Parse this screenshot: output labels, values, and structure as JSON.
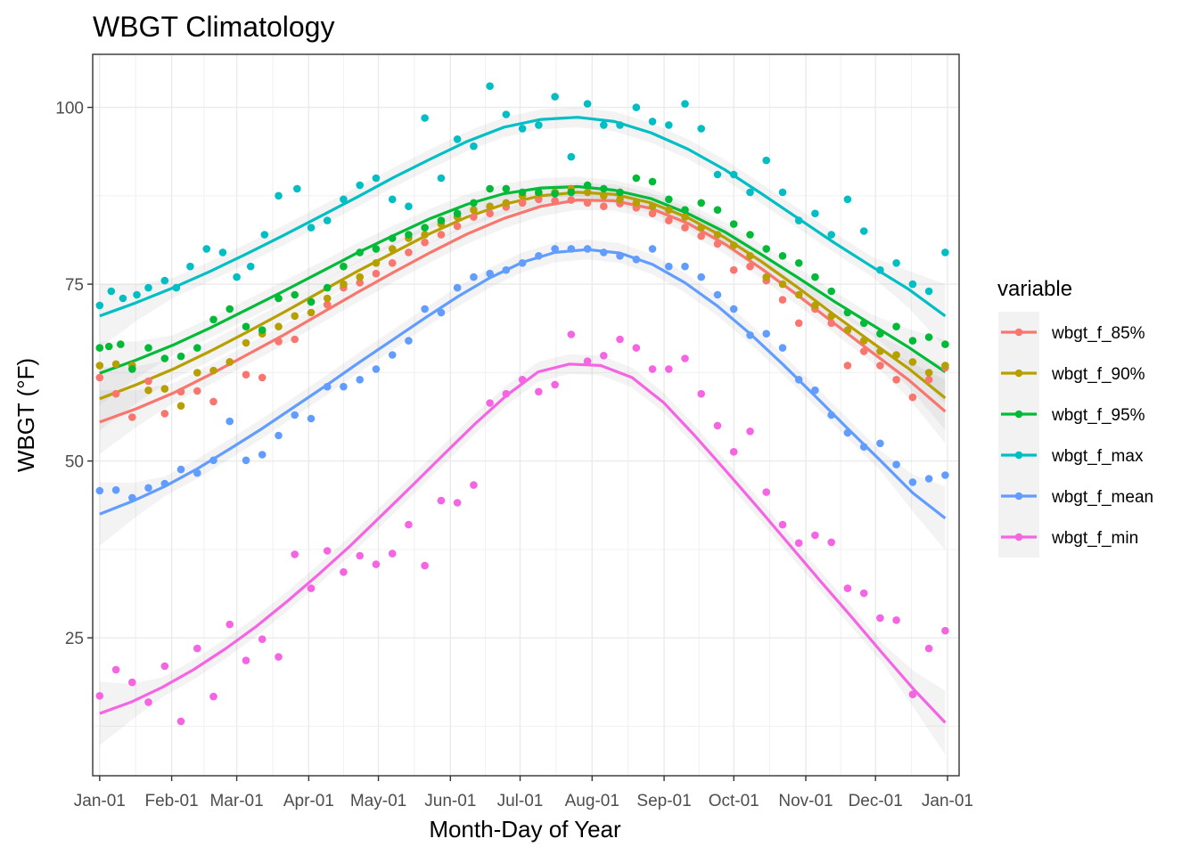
{
  "chart_data": {
    "type": "scatter",
    "title": "WBGT Climatology",
    "xlabel": "Month-Day of Year",
    "ylabel": "WBGT (°F)",
    "x_ticks": [
      "Jan-01",
      "Feb-01",
      "Mar-01",
      "Apr-01",
      "May-01",
      "Jun-01",
      "Jul-01",
      "Aug-01",
      "Sep-01",
      "Oct-01",
      "Nov-01",
      "Dec-01",
      "Jan-01"
    ],
    "x_tick_days": [
      1,
      32,
      60,
      91,
      121,
      152,
      182,
      213,
      244,
      274,
      305,
      335,
      366
    ],
    "xlim": [
      -2,
      371
    ],
    "y_ticks": [
      25,
      50,
      75,
      100
    ],
    "ylim": [
      5.5,
      107.5
    ],
    "grid": true,
    "legend": {
      "title": "variable",
      "placement": "right"
    },
    "series": [
      {
        "name": "wbgt_f_85%",
        "color": "#F8766D",
        "x": [
          1,
          8,
          15,
          22,
          29,
          36,
          43,
          50,
          57,
          64,
          71,
          78,
          85,
          92,
          99,
          106,
          113,
          120,
          127,
          134,
          141,
          148,
          155,
          162,
          169,
          176,
          183,
          190,
          197,
          204,
          211,
          218,
          225,
          232,
          239,
          246,
          253,
          260,
          267,
          274,
          281,
          288,
          295,
          302,
          309,
          316,
          323,
          330,
          337,
          344,
          351,
          358,
          365
        ],
        "y": [
          61.8,
          59.5,
          56.2,
          61.3,
          56.7,
          59.8,
          59.9,
          58.4,
          64.0,
          62.2,
          61.8,
          66.9,
          67.2,
          72.5,
          72.1,
          74.5,
          75.2,
          76.5,
          78.0,
          79.5,
          80.9,
          82.0,
          83.2,
          84.5,
          85.0,
          85.9,
          86.5,
          87.0,
          86.8,
          86.9,
          86.5,
          86.0,
          86.4,
          85.8,
          85.0,
          84.0,
          83.0,
          81.8,
          80.7,
          77.0,
          77.5,
          75.5,
          72.8,
          69.5,
          71.5,
          69.5,
          63.5,
          65.5,
          63.5,
          61.5,
          59.0,
          61.5,
          63.2
        ],
        "smooth": [
          55.5,
          57.4,
          59.6,
          62.2,
          65.0,
          67.8,
          70.8,
          73.8,
          76.7,
          79.5,
          82.1,
          84.3,
          86.0,
          86.9,
          86.8,
          85.7,
          83.6,
          80.7,
          77.2,
          73.4,
          69.4,
          65.4,
          61.5,
          57.0
        ]
      },
      {
        "name": "wbgt_f_90%",
        "color": "#B79F00",
        "x": [
          1,
          8,
          15,
          22,
          29,
          36,
          43,
          50,
          57,
          64,
          71,
          78,
          85,
          92,
          99,
          106,
          113,
          120,
          127,
          134,
          141,
          148,
          155,
          162,
          169,
          176,
          183,
          190,
          197,
          204,
          211,
          218,
          225,
          232,
          239,
          246,
          253,
          260,
          267,
          274,
          281,
          288,
          295,
          302,
          309,
          316,
          323,
          330,
          337,
          344,
          351,
          358,
          365
        ],
        "y": [
          63.5,
          63.7,
          63.5,
          60.0,
          60.2,
          57.8,
          62.5,
          62.8,
          64.0,
          66.7,
          68.0,
          69.0,
          70.5,
          71.0,
          73.0,
          75.0,
          76.0,
          78.0,
          80.0,
          81.5,
          82.0,
          83.5,
          84.5,
          85.5,
          86.0,
          86.5,
          87.5,
          87.8,
          88.0,
          88.5,
          88.0,
          87.5,
          87.0,
          86.5,
          86.0,
          85.5,
          84.5,
          83.0,
          82.0,
          80.5,
          79.0,
          76.0,
          75.0,
          73.5,
          72.0,
          70.5,
          68.5,
          67.0,
          65.5,
          65.0,
          64.0,
          62.5,
          63.5
        ],
        "smooth": [
          58.8,
          60.8,
          63.0,
          65.5,
          68.2,
          71.0,
          73.9,
          76.8,
          79.5,
          82.2,
          84.5,
          86.3,
          87.5,
          88.0,
          87.7,
          86.5,
          84.4,
          81.6,
          78.2,
          74.5,
          70.6,
          66.8,
          63.1,
          58.9
        ]
      },
      {
        "name": "wbgt_f_95%",
        "color": "#00BA38",
        "x": [
          1,
          5,
          10,
          15,
          22,
          29,
          36,
          43,
          50,
          57,
          64,
          71,
          78,
          85,
          92,
          99,
          106,
          113,
          120,
          127,
          134,
          141,
          148,
          155,
          162,
          169,
          176,
          183,
          190,
          197,
          204,
          211,
          218,
          225,
          232,
          239,
          246,
          253,
          260,
          267,
          274,
          281,
          288,
          295,
          302,
          309,
          316,
          323,
          330,
          337,
          344,
          351,
          358,
          365
        ],
        "y": [
          66.0,
          66.2,
          66.5,
          63.0,
          66.0,
          64.5,
          64.8,
          66.0,
          70.0,
          71.5,
          69.0,
          68.5,
          73.0,
          73.5,
          72.5,
          74.5,
          77.5,
          79.5,
          80.0,
          81.5,
          82.0,
          83.0,
          84.0,
          85.0,
          86.5,
          88.5,
          88.5,
          88.0,
          88.0,
          87.8,
          88.0,
          89.0,
          88.5,
          88.0,
          90.0,
          89.5,
          87.0,
          85.5,
          86.5,
          85.5,
          83.5,
          82.0,
          80.0,
          79.0,
          78.0,
          76.0,
          74.0,
          71.0,
          69.5,
          68.0,
          69.0,
          67.0,
          67.5,
          66.5
        ],
        "smooth": [
          62.4,
          64.3,
          66.4,
          68.8,
          71.4,
          74.0,
          76.7,
          79.4,
          81.9,
          84.3,
          86.3,
          87.8,
          88.6,
          88.8,
          88.3,
          87.1,
          85.0,
          82.4,
          79.2,
          75.9,
          72.5,
          69.3,
          66.1,
          62.6
        ]
      },
      {
        "name": "wbgt_f_max",
        "color": "#00BFC4",
        "x": [
          1,
          6,
          11,
          17,
          22,
          29,
          34,
          40,
          47,
          54,
          60,
          66,
          72,
          78,
          86,
          92,
          99,
          106,
          113,
          120,
          127,
          134,
          141,
          148,
          155,
          162,
          169,
          176,
          183,
          190,
          197,
          204,
          211,
          218,
          225,
          232,
          239,
          246,
          253,
          260,
          267,
          274,
          281,
          288,
          295,
          302,
          309,
          316,
          323,
          330,
          337,
          344,
          351,
          358,
          365
        ],
        "y": [
          72.0,
          74.0,
          73.0,
          73.5,
          74.5,
          75.5,
          74.5,
          77.5,
          80.0,
          79.5,
          76.0,
          77.5,
          82.0,
          87.5,
          88.5,
          83.0,
          84.0,
          87.0,
          89.0,
          90.0,
          87.0,
          86.0,
          98.5,
          90.0,
          95.5,
          94.5,
          103.0,
          99.0,
          97.0,
          97.5,
          101.5,
          93.0,
          100.5,
          97.5,
          97.5,
          100.0,
          98.0,
          97.5,
          100.5,
          97.0,
          90.5,
          90.5,
          88.0,
          92.5,
          88.0,
          84.0,
          85.0,
          82.0,
          87.0,
          82.5,
          77.0,
          78.0,
          75.0,
          74.0,
          79.5
        ],
        "smooth": [
          70.5,
          72.4,
          74.5,
          76.8,
          79.3,
          81.9,
          84.6,
          87.3,
          90.1,
          92.7,
          95.2,
          97.2,
          98.3,
          98.6,
          98.0,
          96.4,
          94.1,
          91.2,
          87.8,
          84.3,
          80.8,
          77.5,
          74.3,
          70.5
        ]
      },
      {
        "name": "wbgt_f_mean",
        "color": "#619CFF",
        "x": [
          1,
          8,
          15,
          22,
          29,
          36,
          43,
          50,
          57,
          64,
          71,
          78,
          85,
          92,
          99,
          106,
          113,
          120,
          127,
          134,
          141,
          148,
          155,
          162,
          169,
          176,
          183,
          190,
          197,
          204,
          211,
          218,
          225,
          232,
          239,
          246,
          253,
          260,
          267,
          274,
          281,
          288,
          295,
          302,
          309,
          316,
          323,
          330,
          337,
          344,
          351,
          358,
          365
        ],
        "y": [
          45.8,
          45.9,
          44.8,
          46.2,
          46.8,
          48.8,
          48.3,
          50.1,
          55.6,
          50.1,
          50.9,
          53.6,
          56.5,
          56.0,
          60.5,
          60.5,
          61.5,
          63.0,
          65.0,
          67.0,
          71.5,
          71.0,
          74.5,
          76.0,
          76.5,
          77.0,
          78.0,
          79.0,
          80.0,
          80.0,
          80.0,
          79.5,
          79.0,
          78.5,
          80.0,
          77.5,
          77.5,
          76.0,
          73.5,
          71.5,
          67.8,
          68.0,
          66.0,
          61.5,
          60.0,
          56.5,
          54.0,
          52.0,
          52.5,
          49.5,
          47.0,
          47.5,
          48.0
        ],
        "smooth": [
          42.5,
          44.3,
          46.4,
          48.9,
          51.7,
          54.6,
          57.7,
          60.8,
          64.0,
          67.1,
          70.2,
          73.2,
          75.9,
          78.1,
          79.5,
          79.9,
          79.4,
          77.8,
          75.2,
          71.9,
          68.0,
          63.7,
          59.2,
          54.6,
          50.1,
          45.5,
          41.9
        ]
      },
      {
        "name": "wbgt_f_min",
        "color": "#F564E3",
        "x": [
          1,
          8,
          15,
          22,
          29,
          36,
          43,
          50,
          57,
          64,
          71,
          78,
          85,
          92,
          99,
          106,
          113,
          120,
          127,
          134,
          141,
          148,
          155,
          162,
          169,
          176,
          183,
          190,
          197,
          204,
          211,
          218,
          225,
          232,
          239,
          246,
          253,
          260,
          267,
          274,
          281,
          288,
          295,
          302,
          309,
          316,
          323,
          330,
          337,
          344,
          351,
          358,
          365
        ],
        "y": [
          16.8,
          20.5,
          18.7,
          15.9,
          21.0,
          13.2,
          23.5,
          16.7,
          26.9,
          21.8,
          24.8,
          22.3,
          36.8,
          32.0,
          37.3,
          34.3,
          36.6,
          35.4,
          36.9,
          41.0,
          35.2,
          44.4,
          44.1,
          46.6,
          58.2,
          59.5,
          61.5,
          59.8,
          60.8,
          67.9,
          64.1,
          64.9,
          67.2,
          66.0,
          63.0,
          63.0,
          64.5,
          59.5,
          55.0,
          51.3,
          54.2,
          45.6,
          41.0,
          38.4,
          39.5,
          38.5,
          32.0,
          31.3,
          27.8,
          27.5,
          17.0,
          23.5,
          26.0
        ],
        "smooth": [
          14.3,
          15.9,
          18.0,
          20.5,
          23.4,
          26.6,
          30.2,
          34.0,
          38.0,
          42.3,
          46.6,
          51.0,
          55.3,
          59.3,
          62.6,
          63.7,
          63.5,
          61.8,
          58.3,
          53.6,
          48.6,
          43.5,
          38.3,
          33.1,
          28.0,
          22.8,
          17.7,
          13.0
        ]
      }
    ]
  }
}
